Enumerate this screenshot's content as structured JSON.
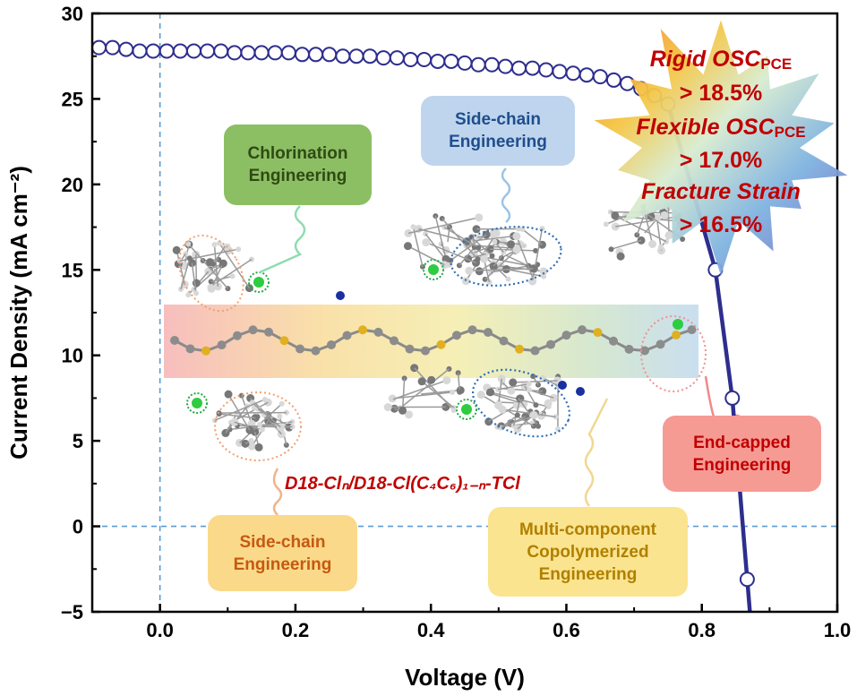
{
  "chart_data": {
    "type": "scatter",
    "title": "",
    "xlabel": "Voltage (V)",
    "ylabel": "Current Density (mA cm⁻²)",
    "xlim": [
      -0.1,
      1.0
    ],
    "ylim": [
      -5,
      30
    ],
    "xticks": [
      "0.0",
      "0.2",
      "0.4",
      "0.6",
      "0.8",
      "1.0"
    ],
    "xtick_values": [
      0.0,
      0.2,
      0.4,
      0.6,
      0.8,
      1.0
    ],
    "yticks": [
      "−5",
      "0",
      "5",
      "10",
      "15",
      "20",
      "25",
      "30"
    ],
    "ytick_values": [
      -5,
      0,
      5,
      10,
      15,
      20,
      25,
      30
    ],
    "reference_lines": {
      "x": 0,
      "y": 0
    },
    "series": [
      {
        "color": "#2e2e8e",
        "x": [
          -0.09,
          -0.07,
          -0.05,
          -0.03,
          -0.01,
          0.01,
          0.03,
          0.05,
          0.07,
          0.09,
          0.11,
          0.13,
          0.15,
          0.17,
          0.19,
          0.21,
          0.23,
          0.25,
          0.27,
          0.29,
          0.31,
          0.33,
          0.35,
          0.37,
          0.39,
          0.41,
          0.43,
          0.45,
          0.47,
          0.49,
          0.51,
          0.53,
          0.55,
          0.57,
          0.59,
          0.61,
          0.63,
          0.65,
          0.67,
          0.69,
          0.71,
          0.73,
          0.75,
          0.82,
          0.845,
          0.867
        ],
        "y": [
          28.0,
          28.0,
          27.9,
          27.8,
          27.8,
          27.8,
          27.8,
          27.8,
          27.8,
          27.8,
          27.7,
          27.7,
          27.7,
          27.7,
          27.7,
          27.6,
          27.6,
          27.6,
          27.5,
          27.5,
          27.5,
          27.4,
          27.4,
          27.3,
          27.3,
          27.2,
          27.2,
          27.1,
          27.0,
          27.0,
          26.9,
          26.8,
          26.8,
          26.7,
          26.6,
          26.5,
          26.4,
          26.3,
          26.1,
          25.9,
          25.6,
          25.2,
          24.7,
          15.0,
          7.5,
          -3.1
        ]
      }
    ]
  },
  "annotations": {
    "chlorination": "Chlorination\nEngineering",
    "side_chain_top": "Side-chain\nEngineering",
    "side_chain_bottom": "Side-chain\nEngineering",
    "multi_component": "Multi-component\nCopolymerized\nEngineering",
    "end_capped": "End-capped\nEngineering",
    "molecule_name": "D18-Clₙ/D18-Cl(C₄C₆)₁₋ₙ-TCl"
  },
  "badge": {
    "rigid_label": "Rigid OSC",
    "rigid_sub": "PCE",
    "rigid_value": "> 18.5%",
    "flexible_label": "Flexible OSC",
    "flexible_sub": "PCE",
    "flexible_value": "> 17.0%",
    "fracture_label": "Fracture Strain",
    "fracture_value": "> 16.5%"
  },
  "colors": {
    "series": "#2e2e8e",
    "reference_line": "#5b9bd5",
    "badge_text": "#c00000"
  }
}
